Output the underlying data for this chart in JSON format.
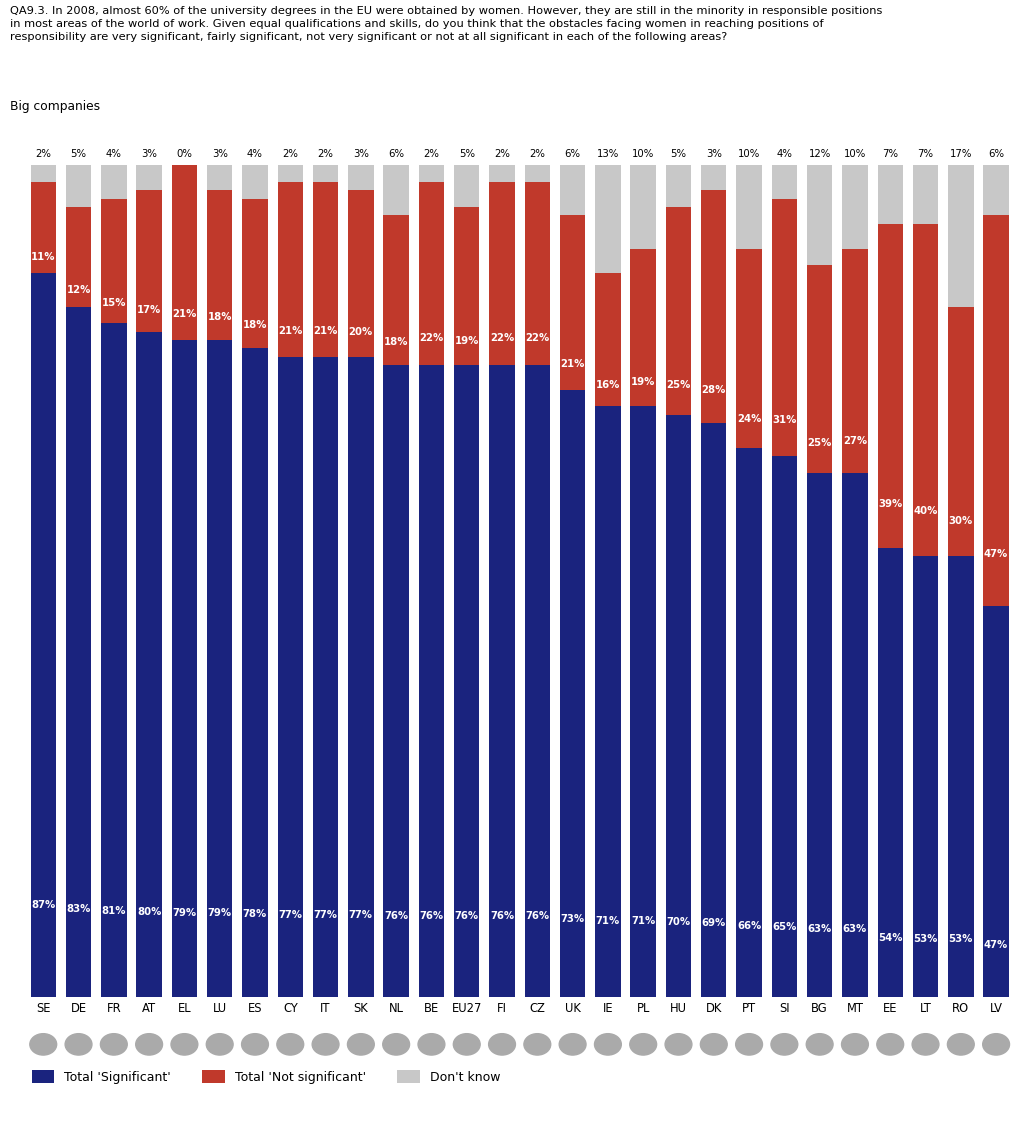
{
  "title_line1": "QA9.3. In 2008, almost 60% of the university degrees in the EU were obtained by women. However, they are still in the minority in responsible positions",
  "title_line2": "in most areas of the world of work. Given equal qualifications and skills, do you think that the obstacles facing women in reaching positions of",
  "title_line3": "responsibility are very significant, fairly significant, not very significant or not at all significant in each of the following areas?",
  "subtitle": "Big companies",
  "countries": [
    "SE",
    "DE",
    "FR",
    "AT",
    "EL",
    "LU",
    "ES",
    "CY",
    "IT",
    "SK",
    "NL",
    "BE",
    "EU27",
    "FI",
    "CZ",
    "UK",
    "IE",
    "PL",
    "HU",
    "DK",
    "PT",
    "SI",
    "BG",
    "MT",
    "EE",
    "LT",
    "RO",
    "LV"
  ],
  "significant": [
    87,
    83,
    81,
    80,
    79,
    79,
    78,
    77,
    77,
    77,
    76,
    76,
    76,
    76,
    76,
    73,
    71,
    71,
    70,
    69,
    66,
    65,
    63,
    63,
    54,
    53,
    53,
    47
  ],
  "not_significant": [
    11,
    12,
    15,
    17,
    21,
    18,
    18,
    21,
    21,
    20,
    18,
    22,
    19,
    22,
    22,
    21,
    16,
    19,
    25,
    28,
    24,
    31,
    25,
    27,
    39,
    40,
    30,
    47
  ],
  "dont_know": [
    2,
    5,
    4,
    3,
    0,
    3,
    4,
    2,
    2,
    3,
    6,
    2,
    5,
    2,
    2,
    6,
    13,
    10,
    5,
    3,
    10,
    4,
    12,
    10,
    7,
    7,
    17,
    6
  ],
  "bar_color_significant": "#1a237e",
  "bar_color_not_significant": "#c0392b",
  "bar_color_dont_know": "#c8c8c8",
  "legend_labels": [
    "Total 'Significant'",
    "Total 'Not significant'",
    "Don't know"
  ],
  "background_color": "#ffffff",
  "figsize": [
    10.24,
    11.26
  ],
  "ylim_max": 105
}
